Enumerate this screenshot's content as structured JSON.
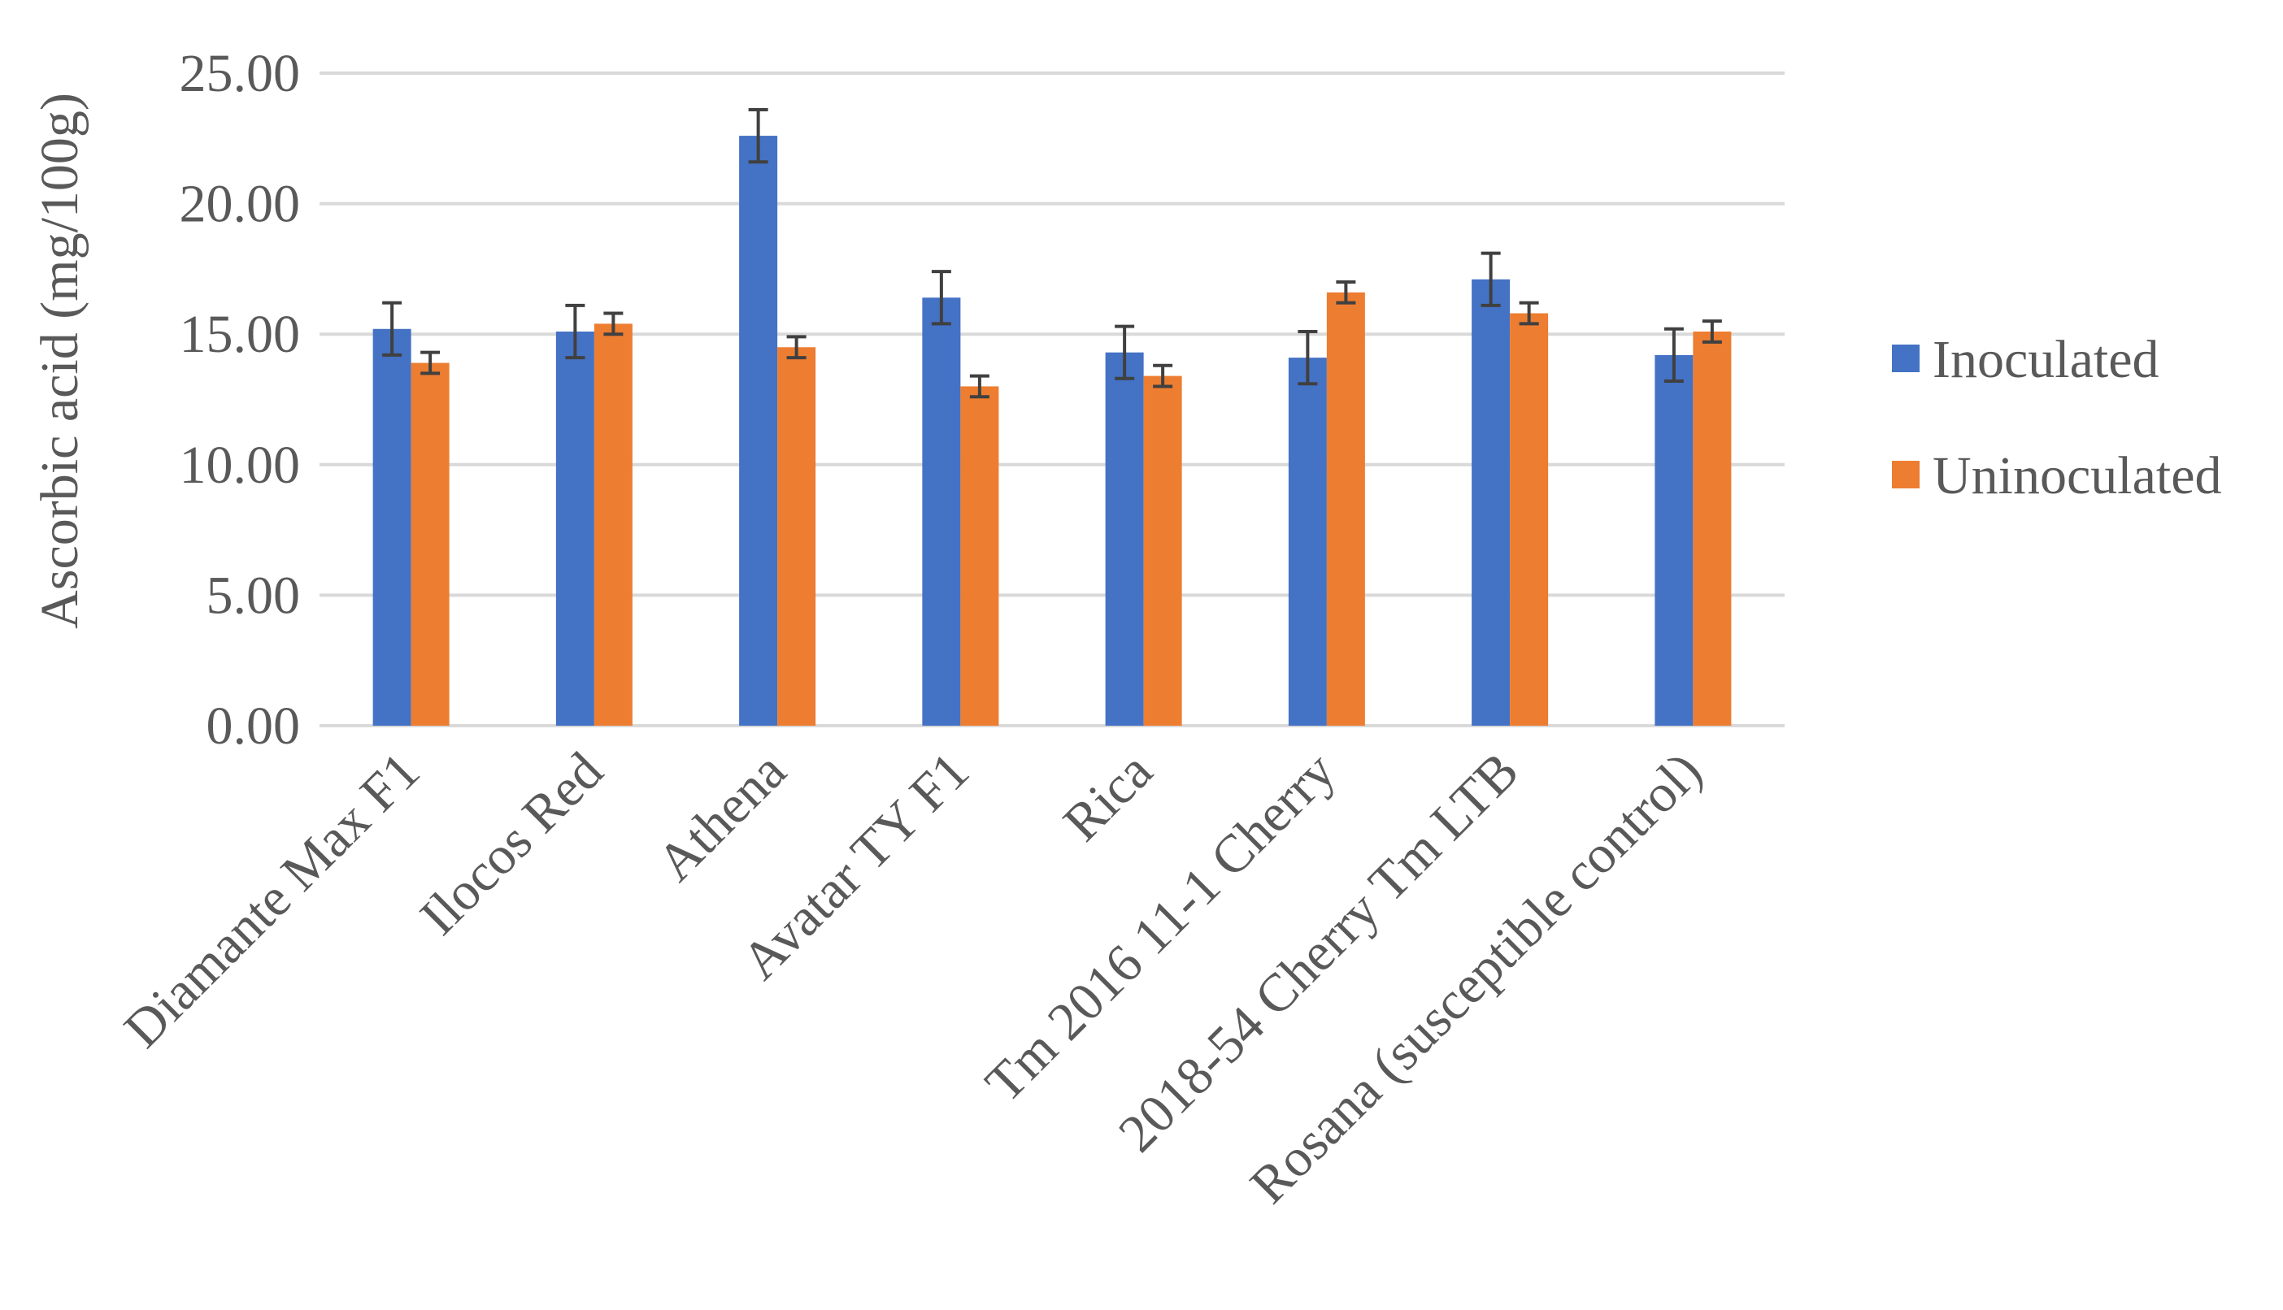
{
  "chart_data": {
    "type": "bar",
    "title": "",
    "xlabel": "",
    "ylabel": "Ascorbic acid (mg/100g)",
    "ylim": [
      0,
      25
    ],
    "yticks": [
      "0.00",
      "5.00",
      "10.00",
      "15.00",
      "20.00",
      "25.00"
    ],
    "ytick_values": [
      0,
      5,
      10,
      15,
      20,
      25
    ],
    "grid": true,
    "legend_position": "right",
    "categories": [
      "Diamante Max F1",
      "Ilocos Red",
      "Athena",
      "Avatar TY F1",
      "Rica",
      "Tm 2016 11-1 Cherry",
      "2018-54 Cherry Tm LTB",
      "Rosana (susceptible control)"
    ],
    "series": [
      {
        "name": "Inoculated",
        "color": "#4472C4",
        "values": [
          15.2,
          15.1,
          22.6,
          16.4,
          14.3,
          14.1,
          17.1,
          14.2
        ],
        "errors": [
          1.0,
          1.0,
          1.0,
          1.0,
          1.0,
          1.0,
          1.0,
          1.0
        ]
      },
      {
        "name": "Uninoculated",
        "color": "#ED7D31",
        "values": [
          13.9,
          15.4,
          14.5,
          13.0,
          13.4,
          16.6,
          15.8,
          15.1
        ],
        "errors": [
          0.4,
          0.4,
          0.4,
          0.4,
          0.4,
          0.4,
          0.4,
          0.4
        ]
      }
    ],
    "colors": {
      "gridline": "#D9D9D9",
      "error_bar": "#404040",
      "text": "#595959"
    }
  }
}
